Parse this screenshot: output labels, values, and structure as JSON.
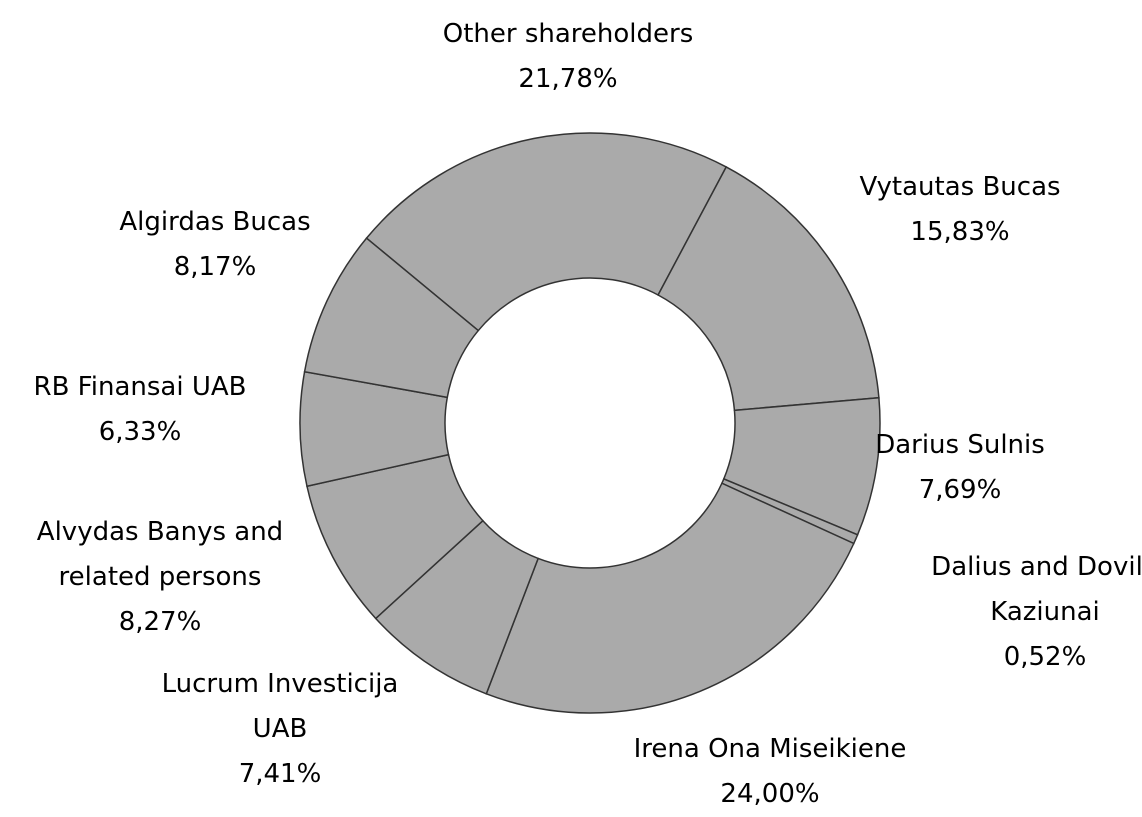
{
  "chart_data": {
    "type": "donut",
    "categories": [
      "Other shareholders",
      "Vytautas Bucas",
      "Darius Sulnis",
      "Dalius and Dovile Kaziunai",
      "Irena Ona Miseikiene",
      "Lucrum Investicija UAB",
      "Alvydas Banys and related persons",
      "RB Finansai UAB",
      "Algirdas Bucas"
    ],
    "values": [
      21.78,
      15.83,
      7.69,
      0.52,
      24.0,
      7.41,
      8.27,
      6.33,
      8.17
    ],
    "value_labels": [
      "21,78%",
      "15,83%",
      "7,69%",
      "0,52%",
      "24,00%",
      "7,41%",
      "8,27%",
      "6,33%",
      "8,17%"
    ],
    "color": "#aaaaaa"
  }
}
